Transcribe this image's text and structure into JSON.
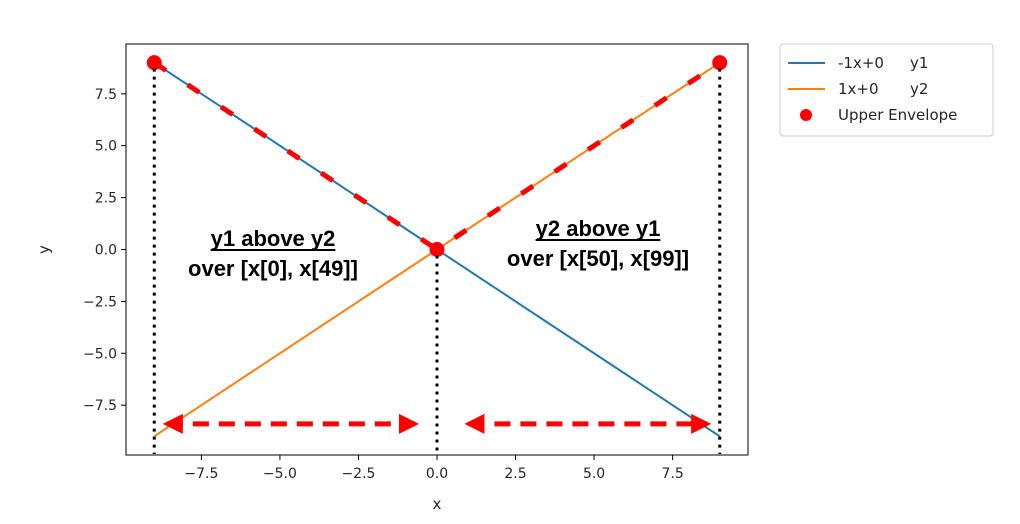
{
  "chart_data": {
    "type": "line",
    "xlabel": "x",
    "ylabel": "y",
    "xlim": [
      -9.9,
      9.9
    ],
    "ylim": [
      -9.9,
      9.9
    ],
    "xticks": [
      -7.5,
      -5.0,
      -2.5,
      0.0,
      2.5,
      5.0,
      7.5
    ],
    "yticks": [
      7.5,
      5.0,
      2.5,
      0.0,
      -2.5,
      -5.0,
      -7.5
    ],
    "xtick_labels": [
      "−7.5",
      "−5.0",
      "−2.5",
      "0.0",
      "2.5",
      "5.0",
      "7.5"
    ],
    "ytick_labels": [
      "7.5",
      "5.0",
      "2.5",
      "0.0",
      "−2.5",
      "−5.0",
      "−7.5"
    ],
    "grid": false,
    "legend_position": "outside-right-top",
    "series": [
      {
        "name": "-1x+0",
        "suffix": "y1",
        "color": "#1f77b4",
        "x": [
          -9,
          9
        ],
        "y": [
          9,
          -9
        ]
      },
      {
        "name": "1x+0",
        "suffix": "y2",
        "color": "#ff7f0e",
        "x": [
          -9,
          9
        ],
        "y": [
          -9,
          9
        ]
      }
    ],
    "envelope": {
      "name": "Upper Envelope",
      "color": "#ff0000",
      "points": [
        {
          "x": -9,
          "y": 9
        },
        {
          "x": 0,
          "y": 0
        },
        {
          "x": 9,
          "y": 9
        }
      ]
    },
    "annotations": [
      {
        "line1": "y1 above y2",
        "line2": "over [x[0], x[49]]"
      },
      {
        "line1": "y2 above y1",
        "line2": "over [x[50], x[99]]"
      }
    ],
    "region_arrows": [
      {
        "from": -8.6,
        "to": -0.7,
        "y": -8.4
      },
      {
        "from": 1.0,
        "to": 8.6,
        "y": -8.4
      }
    ],
    "vlines": [
      -9,
      0,
      9
    ]
  }
}
